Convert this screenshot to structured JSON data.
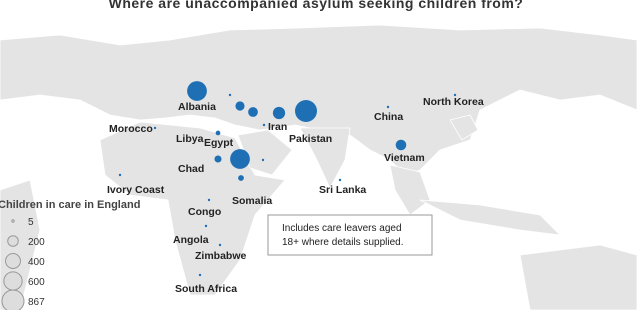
{
  "title": "Where are unaccompanied asylum seeking children from?",
  "labels": [
    "Albania",
    "Morocco",
    "Libya",
    "Egypt",
    "Iran",
    "Pakistan",
    "China",
    "North Korea",
    "Chad",
    "Vietnam",
    "Ivory Coast",
    "Sri Lanka",
    "Somalia",
    "Congo",
    "Angola",
    "Zimbabwe",
    "South Africa"
  ],
  "bubbles": [
    700,
    867,
    700,
    270,
    170,
    150,
    200,
    90,
    60,
    40,
    5,
    5,
    5,
    5,
    5,
    5,
    5,
    5,
    5,
    5,
    5,
    5
  ],
  "legend": {
    "title": "Children in care in England",
    "values": [
      5,
      200,
      400,
      600,
      867
    ]
  },
  "note": [
    "Includes care leavers aged",
    "18+ where details supplied."
  ]
}
